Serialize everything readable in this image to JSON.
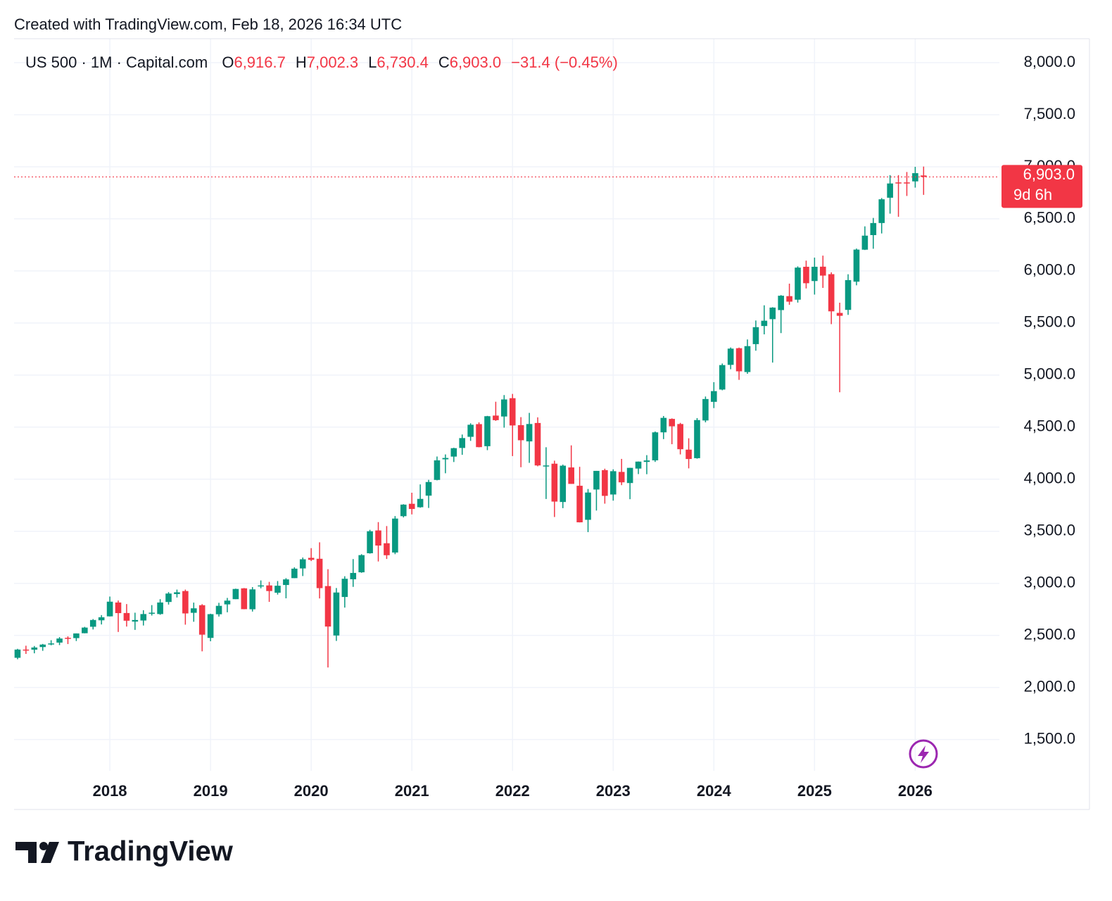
{
  "chart_data": {
    "type": "candlestick",
    "title": "Created with TradingView.com, Feb 18, 2026 16:34 UTC",
    "symbol": "US 500 · 1M · Capital.com",
    "legend": [
      {
        "key": "O",
        "value": "6,916.7"
      },
      {
        "key": "H",
        "value": "7,002.3"
      },
      {
        "key": "L",
        "value": "6,730.4"
      },
      {
        "key": "C",
        "value": "6,903.0"
      }
    ],
    "change": "−31.4 (−0.45%)",
    "last_price_label": "6,903.0",
    "countdown": "9d 6h",
    "brand": "TradingView",
    "up_color": "#089981",
    "down_color": "#f23645",
    "grid": true,
    "ylim": [
      1200,
      8230
    ],
    "yticks": [
      {
        "value": 1500,
        "label": "1,500.0"
      },
      {
        "value": 2000,
        "label": "2,000.0"
      },
      {
        "value": 2500,
        "label": "2,500.0"
      },
      {
        "value": 3000,
        "label": "3,000.0"
      },
      {
        "value": 3500,
        "label": "3,500.0"
      },
      {
        "value": 4000,
        "label": "4,000.0"
      },
      {
        "value": 4500,
        "label": "4,500.0"
      },
      {
        "value": 5000,
        "label": "5,000.0"
      },
      {
        "value": 5500,
        "label": "5,500.0"
      },
      {
        "value": 6000,
        "label": "6,000.0"
      },
      {
        "value": 6500,
        "label": "6,500.0"
      },
      {
        "value": 7000,
        "label": "7,000.0"
      },
      {
        "value": 7500,
        "label": "7,500.0"
      },
      {
        "value": 8000,
        "label": "8,000.0"
      }
    ],
    "categories": [
      null,
      null,
      null,
      null,
      null,
      null,
      null,
      null,
      null,
      null,
      null,
      "2018",
      null,
      null,
      null,
      null,
      null,
      null,
      null,
      null,
      null,
      null,
      null,
      "2019",
      null,
      null,
      null,
      null,
      null,
      null,
      null,
      null,
      null,
      null,
      null,
      "2020",
      null,
      null,
      null,
      null,
      null,
      null,
      null,
      null,
      null,
      null,
      null,
      "2021",
      null,
      null,
      null,
      null,
      null,
      null,
      null,
      null,
      null,
      null,
      null,
      "2022",
      null,
      null,
      null,
      null,
      null,
      null,
      null,
      null,
      null,
      null,
      null,
      "2023",
      null,
      null,
      null,
      null,
      null,
      null,
      null,
      null,
      null,
      null,
      null,
      "2024",
      null,
      null,
      null,
      null,
      null,
      null,
      null,
      null,
      null,
      null,
      null,
      "2025",
      null,
      null,
      null,
      null,
      null,
      null,
      null,
      null,
      null,
      null,
      null,
      "2026",
      null
    ],
    "candles": [
      [
        2285,
        2371,
        2271,
        2364
      ],
      [
        2364,
        2401,
        2322,
        2363
      ],
      [
        2363,
        2398,
        2328,
        2384
      ],
      [
        2388,
        2418,
        2352,
        2412
      ],
      [
        2415,
        2454,
        2405,
        2423
      ],
      [
        2431,
        2484,
        2407,
        2470
      ],
      [
        2477,
        2491,
        2417,
        2472
      ],
      [
        2474,
        2519,
        2446,
        2519
      ],
      [
        2521,
        2582,
        2520,
        2575
      ],
      [
        2583,
        2657,
        2557,
        2648
      ],
      [
        2645,
        2695,
        2605,
        2674
      ],
      [
        2683,
        2873,
        2682,
        2824
      ],
      [
        2816,
        2835,
        2533,
        2714
      ],
      [
        2715,
        2801,
        2585,
        2641
      ],
      [
        2633,
        2718,
        2553,
        2648
      ],
      [
        2643,
        2742,
        2595,
        2705
      ],
      [
        2718,
        2791,
        2691,
        2718
      ],
      [
        2705,
        2848,
        2698,
        2816
      ],
      [
        2821,
        2916,
        2796,
        2902
      ],
      [
        2897,
        2940,
        2864,
        2914
      ],
      [
        2926,
        2940,
        2603,
        2711
      ],
      [
        2717,
        2815,
        2631,
        2760
      ],
      [
        2790,
        2800,
        2347,
        2507
      ],
      [
        2476,
        2708,
        2444,
        2704
      ],
      [
        2703,
        2813,
        2681,
        2784
      ],
      [
        2798,
        2860,
        2722,
        2834
      ],
      [
        2848,
        2949,
        2848,
        2946
      ],
      [
        2952,
        2955,
        2751,
        2752
      ],
      [
        2751,
        2964,
        2729,
        2942
      ],
      [
        2971,
        3028,
        2952,
        2980
      ],
      [
        2980,
        3014,
        2822,
        2926
      ],
      [
        2910,
        3022,
        2892,
        2977
      ],
      [
        2984,
        3050,
        2856,
        3038
      ],
      [
        3050,
        3154,
        3050,
        3141
      ],
      [
        3143,
        3248,
        3070,
        3231
      ],
      [
        3245,
        3338,
        3214,
        3226
      ],
      [
        3236,
        3394,
        2855,
        2954
      ],
      [
        2974,
        3136,
        2192,
        2585
      ],
      [
        2499,
        2955,
        2447,
        2912
      ],
      [
        2869,
        3068,
        2767,
        3044
      ],
      [
        3039,
        3233,
        2966,
        3100
      ],
      [
        3106,
        3280,
        3101,
        3271
      ],
      [
        3289,
        3514,
        3285,
        3500
      ],
      [
        3508,
        3588,
        3210,
        3363
      ],
      [
        3385,
        3550,
        3234,
        3270
      ],
      [
        3296,
        3646,
        3280,
        3622
      ],
      [
        3645,
        3760,
        3633,
        3756
      ],
      [
        3764,
        3870,
        3662,
        3714
      ],
      [
        3731,
        3950,
        3726,
        3811
      ],
      [
        3842,
        3994,
        3724,
        3973
      ],
      [
        3993,
        4218,
        3989,
        4181
      ],
      [
        4191,
        4238,
        4057,
        4204
      ],
      [
        4217,
        4302,
        4165,
        4298
      ],
      [
        4300,
        4429,
        4234,
        4395
      ],
      [
        4407,
        4537,
        4368,
        4523
      ],
      [
        4529,
        4546,
        4306,
        4308
      ],
      [
        4317,
        4608,
        4279,
        4605
      ],
      [
        4611,
        4744,
        4560,
        4567
      ],
      [
        4602,
        4808,
        4495,
        4766
      ],
      [
        4778,
        4819,
        4222,
        4516
      ],
      [
        4519,
        4596,
        4115,
        4374
      ],
      [
        4363,
        4637,
        4157,
        4530
      ],
      [
        4540,
        4594,
        4124,
        4132
      ],
      [
        4130,
        4307,
        3810,
        4132
      ],
      [
        4149,
        4178,
        3637,
        3785
      ],
      [
        3781,
        4140,
        3722,
        4130
      ],
      [
        4113,
        4325,
        3955,
        3955
      ],
      [
        3937,
        4119,
        3585,
        3586
      ],
      [
        3610,
        3906,
        3492,
        3872
      ],
      [
        3901,
        4080,
        3699,
        4080
      ],
      [
        4087,
        4101,
        3765,
        3840
      ],
      [
        3853,
        4095,
        3794,
        4077
      ],
      [
        4070,
        4195,
        3943,
        3970
      ],
      [
        3963,
        4110,
        3808,
        4109
      ],
      [
        4102,
        4170,
        4049,
        4169
      ],
      [
        4166,
        4231,
        4048,
        4180
      ],
      [
        4181,
        4458,
        4166,
        4450
      ],
      [
        4450,
        4607,
        4385,
        4589
      ],
      [
        4579,
        4584,
        4336,
        4508
      ],
      [
        4530,
        4541,
        4238,
        4288
      ],
      [
        4284,
        4393,
        4104,
        4194
      ],
      [
        4202,
        4587,
        4197,
        4568
      ],
      [
        4564,
        4794,
        4546,
        4770
      ],
      [
        4743,
        4932,
        4683,
        4846
      ],
      [
        4861,
        5111,
        4854,
        5096
      ],
      [
        5098,
        5265,
        5056,
        5254
      ],
      [
        5258,
        5264,
        4954,
        5036
      ],
      [
        5029,
        5342,
        5012,
        5278
      ],
      [
        5297,
        5524,
        5234,
        5460
      ],
      [
        5471,
        5670,
        5391,
        5522
      ],
      [
        5537,
        5652,
        5120,
        5648
      ],
      [
        5624,
        5768,
        5403,
        5762
      ],
      [
        5758,
        5878,
        5675,
        5705
      ],
      [
        5724,
        6044,
        5696,
        6032
      ],
      [
        6040,
        6099,
        5832,
        5882
      ],
      [
        5903,
        6128,
        5773,
        6040
      ],
      [
        6041,
        6147,
        5837,
        5955
      ],
      [
        5969,
        5987,
        5489,
        5612
      ],
      [
        5597,
        5695,
        4835,
        5569
      ],
      [
        5626,
        5968,
        5578,
        5912
      ],
      [
        5897,
        6215,
        5862,
        6205
      ],
      [
        6204,
        6428,
        6201,
        6339
      ],
      [
        6344,
        6509,
        6213,
        6460
      ],
      [
        6460,
        6700,
        6360,
        6688
      ],
      [
        6703,
        6920,
        6550,
        6840
      ],
      [
        6850,
        6920,
        6520,
        6849
      ],
      [
        6850,
        6950,
        6720,
        6845
      ],
      [
        6860,
        7000,
        6800,
        6939
      ],
      [
        6916.7,
        7002.3,
        6730.4,
        6903.0
      ]
    ]
  }
}
